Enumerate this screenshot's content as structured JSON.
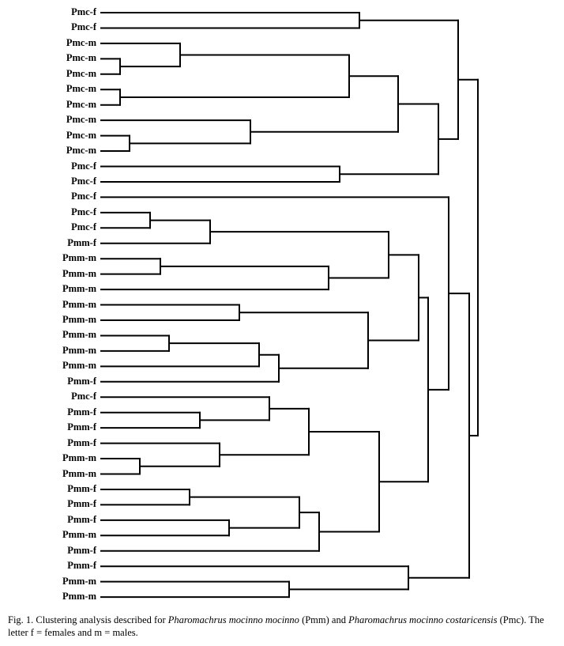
{
  "leaves": [
    "Pmc-f",
    "Pmc-f",
    "Pmc-m",
    "Pmc-m",
    "Pmc-m",
    "Pmc-m",
    "Pmc-m",
    "Pmc-m",
    "Pmc-m",
    "Pmc-m",
    "Pmc-f",
    "Pmc-f",
    "Pmc-f",
    "Pmc-f",
    "Pmc-f",
    "Pmm-f",
    "Pmm-m",
    "Pmm-m",
    "Pmm-m",
    "Pmm-m",
    "Pmm-m",
    "Pmm-m",
    "Pmm-m",
    "Pmm-m",
    "Pmm-f",
    "Pmc-f",
    "Pmm-f",
    "Pmm-f",
    "Pmm-f",
    "Pmm-m",
    "Pmm-m",
    "Pmm-f",
    "Pmm-f",
    "Pmm-f",
    "Pmm-m",
    "Pmm-f",
    "Pmm-f",
    "Pmm-m",
    "Pmm-m"
  ],
  "dendrogram": {
    "line_color": "#000000",
    "merges": [
      {
        "children": [
          "L0",
          "L1"
        ]
      },
      {
        "children": [
          "L3",
          "L4"
        ]
      },
      {
        "children": [
          "L2",
          "N1"
        ]
      },
      {
        "children": [
          "L5",
          "L6"
        ]
      },
      {
        "children": [
          "N2",
          "N3"
        ]
      },
      {
        "children": [
          "L8",
          "L9"
        ]
      },
      {
        "children": [
          "L7",
          "N5"
        ]
      },
      {
        "children": [
          "N4",
          "N6"
        ]
      },
      {
        "children": [
          "L10",
          "L11"
        ]
      },
      {
        "children": [
          "N7",
          "N8"
        ]
      },
      {
        "children": [
          "N0",
          "N9"
        ]
      },
      {
        "children": [
          "L13",
          "L14"
        ]
      },
      {
        "children": [
          "N11",
          "L15"
        ]
      },
      {
        "children": [
          "L16",
          "L17"
        ]
      },
      {
        "children": [
          "N13",
          "L18"
        ]
      },
      {
        "children": [
          "N12",
          "N14"
        ]
      },
      {
        "children": [
          "L19",
          "L20"
        ]
      },
      {
        "children": [
          "L21",
          "L22"
        ]
      },
      {
        "children": [
          "N17",
          "L23"
        ]
      },
      {
        "children": [
          "N18",
          "L24"
        ]
      },
      {
        "children": [
          "N16",
          "N19"
        ]
      },
      {
        "children": [
          "N15",
          "N20"
        ]
      },
      {
        "children": [
          "L26",
          "L27"
        ]
      },
      {
        "children": [
          "L25",
          "N22"
        ]
      },
      {
        "children": [
          "L29",
          "L30"
        ]
      },
      {
        "children": [
          "L28",
          "N24"
        ]
      },
      {
        "children": [
          "N23",
          "N25"
        ]
      },
      {
        "children": [
          "L31",
          "L32"
        ]
      },
      {
        "children": [
          "L33",
          "L34"
        ]
      },
      {
        "children": [
          "N27",
          "N28"
        ]
      },
      {
        "children": [
          "N29",
          "L35"
        ]
      },
      {
        "children": [
          "N26",
          "N30"
        ]
      },
      {
        "children": [
          "N21",
          "N31"
        ]
      },
      {
        "children": [
          "L12",
          "N32"
        ]
      },
      {
        "children": [
          "L37",
          "L38"
        ]
      },
      {
        "children": [
          "L36",
          "N34"
        ]
      },
      {
        "children": [
          "N33",
          "N35"
        ]
      },
      {
        "children": [
          "N10",
          "N36"
        ]
      }
    ]
  },
  "caption": {
    "prefix": "Fig. 1. Clustering analysis described for ",
    "taxon1": "Pharomachrus mocinno mocinno",
    "mid": " (Pmm) and ",
    "taxon2": "Pharomachrus mocinno costaricensis",
    "suffix": " (Pmc). The letter f = females and m = males."
  }
}
